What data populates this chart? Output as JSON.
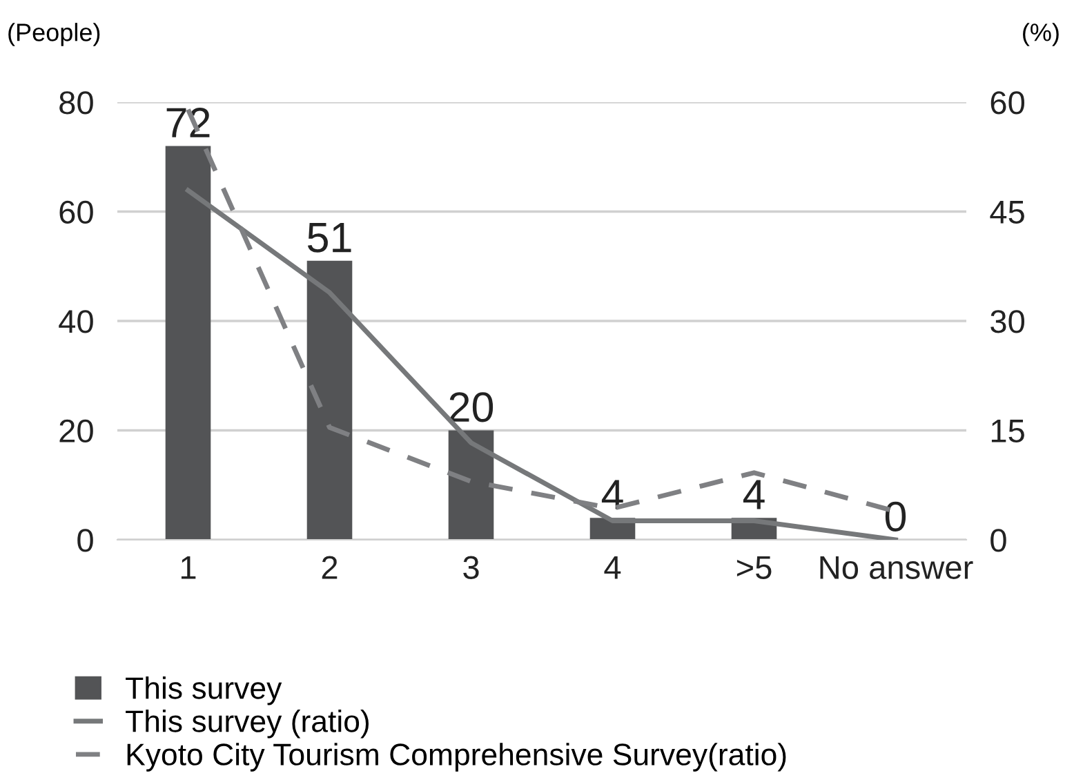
{
  "chart_data": {
    "type": "bar",
    "categories": [
      "1",
      "2",
      "3",
      "4",
      ">5",
      "No answer"
    ],
    "ylabel": "(People)",
    "y2label": "(%)",
    "ylim": [
      0,
      80
    ],
    "yticks": [
      0,
      20,
      40,
      60,
      80
    ],
    "y2lim": [
      0,
      60
    ],
    "y2ticks": [
      0,
      15,
      30,
      45,
      60
    ],
    "grid": "y",
    "legend": "bottom",
    "series": [
      {
        "name": "This survey",
        "color": "#535456",
        "values": [
          72,
          51,
          20,
          4,
          4,
          0
        ],
        "value_labels": [
          "72",
          "51",
          "20",
          "4",
          "4",
          "0"
        ]
      },
      {
        "name": "This survey (ratio)",
        "type": "line",
        "axis": "y2",
        "color": "#76787a",
        "line_style": "solid",
        "values": [
          47.9,
          33.9,
          13.3,
          2.6,
          2.6,
          0
        ]
      },
      {
        "name": "Kyoto City Tourism Comprehensive Survey(ratio)",
        "type": "line",
        "axis": "y2",
        "color": "#7f8083",
        "line_style": "dashed",
        "values": [
          59,
          15.4,
          8.0,
          4.3,
          9.2,
          3.9
        ]
      }
    ]
  }
}
